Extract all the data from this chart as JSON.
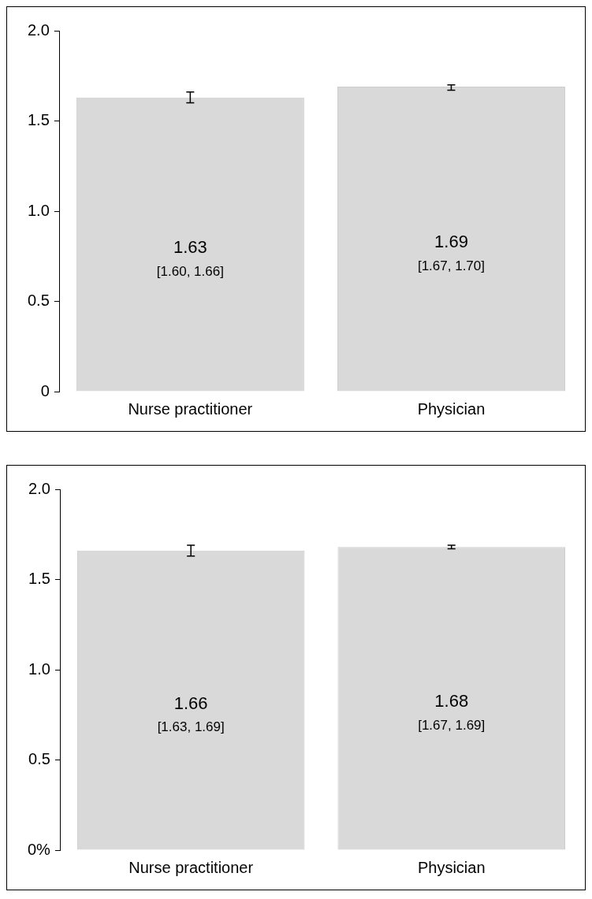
{
  "chart_data": [
    {
      "type": "bar",
      "categories": [
        "Nurse practitioner",
        "Physician"
      ],
      "values": [
        1.63,
        1.69
      ],
      "color": "#d9d9d9",
      "errors": [
        [
          1.6,
          1.66
        ],
        [
          1.67,
          1.7
        ]
      ],
      "value_labels": [
        "1.63\n[1.60, 1.66]",
        "1.69\n[1.67, 1.70]"
      ],
      "ylim": [
        0,
        2
      ],
      "yticks": [
        0,
        0.5,
        {
          "value": 1,
          "label": "1.0"
        },
        1.5,
        {
          "value": 2,
          "label": "2.0"
        }
      ],
      "grid": false,
      "legend": false
    },
    {
      "type": "bar",
      "categories": [
        "Nurse practitioner",
        "Physician"
      ],
      "values": [
        1.66,
        1.68
      ],
      "color": "#d9d9d9",
      "errors": [
        [
          1.63,
          1.69
        ],
        [
          1.67,
          1.69
        ]
      ],
      "value_labels": [
        "1.66\n[1.63, 1.69]",
        "1.68\n[1.67, 1.69]"
      ],
      "ylim": [
        0,
        2
      ],
      "yticks": [
        {
          "value": 0,
          "label": "0%"
        },
        0.5,
        {
          "value": 1,
          "label": "1.0"
        },
        1.5,
        {
          "value": 2,
          "label": "2.0"
        }
      ],
      "grid": false,
      "legend": false
    }
  ]
}
